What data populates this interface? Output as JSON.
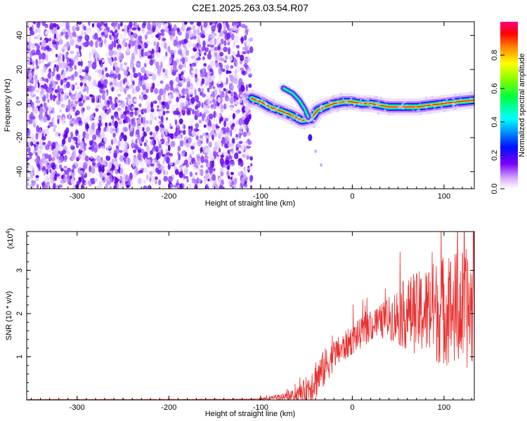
{
  "title": "C2E1.2025.263.03.54.R07",
  "chart_data": [
    {
      "type": "heatmap",
      "name": "spectrogram",
      "xlabel": "Height of straight line (km)",
      "ylabel": "Frequency (Hz)",
      "xlim": [
        -355,
        133
      ],
      "ylim": [
        -50,
        48
      ],
      "xticks": [
        -300,
        -200,
        -100,
        0,
        100
      ],
      "yticks": [
        -40,
        -20,
        0,
        20,
        40
      ],
      "noise_region": [
        -355,
        -110
      ],
      "ridge": [
        {
          "x": -110,
          "y": 3
        },
        {
          "x": -100,
          "y": 1
        },
        {
          "x": -90,
          "y": -2
        },
        {
          "x": -80,
          "y": -4
        },
        {
          "x": -70,
          "y": -6
        },
        {
          "x": -62,
          "y": -8
        },
        {
          "x": -55,
          "y": -10
        },
        {
          "x": -45,
          "y": -9
        },
        {
          "x": -38,
          "y": -4
        },
        {
          "x": -30,
          "y": -2
        },
        {
          "x": -20,
          "y": 0
        },
        {
          "x": -10,
          "y": 1
        },
        {
          "x": 0,
          "y": 1
        },
        {
          "x": 10,
          "y": 0
        },
        {
          "x": 20,
          "y": 0
        },
        {
          "x": 30,
          "y": -1
        },
        {
          "x": 40,
          "y": -2
        },
        {
          "x": 55,
          "y": -2
        },
        {
          "x": 70,
          "y": -2
        },
        {
          "x": 85,
          "y": -1
        },
        {
          "x": 100,
          "y": 0
        },
        {
          "x": 115,
          "y": 1
        },
        {
          "x": 133,
          "y": 2
        }
      ],
      "branch": [
        {
          "x": -75,
          "y": 9
        },
        {
          "x": -65,
          "y": 6
        },
        {
          "x": -58,
          "y": 2
        },
        {
          "x": -52,
          "y": -3
        },
        {
          "x": -48,
          "y": -8
        }
      ],
      "tail": [
        {
          "x": -46,
          "y": -20
        },
        {
          "x": -40,
          "y": -28
        },
        {
          "x": -34,
          "y": -36
        }
      ]
    },
    {
      "type": "colorbar",
      "name": "amplitude-scale",
      "label": "Normalized spectral amplitude",
      "range": [
        0,
        1
      ],
      "ticks": [
        "0.0",
        "0.2",
        "0.4",
        "0.6",
        "0.8"
      ]
    },
    {
      "type": "line",
      "name": "snr",
      "xlabel": "Height of straight line (km)",
      "ylabel": "SNR (10 * v/v)",
      "multiplier": "(x10",
      "multiplier_exp": "4",
      "multiplier_close": ")",
      "xlim": [
        -355,
        133
      ],
      "ylim": [
        0,
        3.9
      ],
      "xticks": [
        -300,
        -200,
        -100,
        0,
        100
      ],
      "yticks": [
        1,
        2,
        3
      ],
      "color": "#e83030",
      "series": [
        {
          "name": "SNR",
          "x": [
            -355,
            -200,
            -110,
            -100,
            -90,
            -80,
            -70,
            -60,
            -50,
            -45,
            -40,
            -35,
            -30,
            -25,
            -20,
            -10,
            0,
            10,
            20,
            30,
            40,
            50,
            60,
            70,
            80,
            90,
            100,
            110,
            120,
            133
          ],
          "mean": [
            0.01,
            0.01,
            0.015,
            0.02,
            0.04,
            0.06,
            0.08,
            0.12,
            0.25,
            0.35,
            0.5,
            0.6,
            0.75,
            0.9,
            1.05,
            1.2,
            1.4,
            1.55,
            1.7,
            1.8,
            1.9,
            1.95,
            2.0,
            2.0,
            2.05,
            2.05,
            2.1,
            2.1,
            2.1,
            2.1
          ],
          "amp": [
            0.005,
            0.005,
            0.01,
            0.03,
            0.05,
            0.07,
            0.1,
            0.15,
            0.3,
            0.4,
            0.5,
            0.45,
            0.45,
            0.4,
            0.35,
            0.35,
            0.35,
            0.35,
            0.35,
            0.4,
            0.5,
            0.7,
            0.85,
            0.95,
            1.05,
            1.2,
            1.3,
            1.35,
            1.4,
            1.4
          ]
        }
      ]
    }
  ]
}
